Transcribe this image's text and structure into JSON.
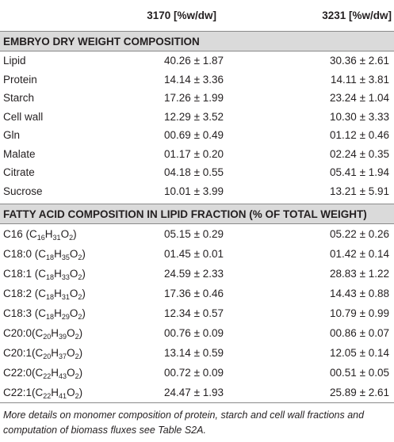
{
  "table": {
    "headers": [
      "",
      "3170 [%w/dw]",
      "3231 [%w/dw]"
    ],
    "sections": [
      {
        "title": "EMBRYO DRY WEIGHT COMPOSITION",
        "rows": [
          {
            "label": "Lipid",
            "v1": "40.26 ± 1.87",
            "v2": "30.36 ± 2.61"
          },
          {
            "label": "Protein",
            "v1": "14.14 ± 3.36",
            "v2": "14.11 ± 3.81"
          },
          {
            "label": "Starch",
            "v1": "17.26 ± 1.99",
            "v2": "23.24 ± 1.04"
          },
          {
            "label": "Cell wall",
            "v1": "12.29 ± 3.52",
            "v2": "10.30 ± 3.33"
          },
          {
            "label": "Gln",
            "v1": "00.69 ± 0.49",
            "v2": "01.12 ± 0.46"
          },
          {
            "label": "Malate",
            "v1": "01.17 ± 0.20",
            "v2": "02.24 ± 0.35"
          },
          {
            "label": "Citrate",
            "v1": "04.18 ± 0.55",
            "v2": "05.41 ± 1.94"
          },
          {
            "label": "Sucrose",
            "v1": "10.01 ± 3.99",
            "v2": "13.21 ± 5.91"
          }
        ]
      },
      {
        "title": "FATTY ACID COMPOSITION IN LIPID FRACTION (% OF TOTAL WEIGHT)",
        "rows": [
          {
            "name": "C16",
            "gap": " ",
            "formula": {
              "c": "16",
              "h": "31",
              "o": "2"
            },
            "v1": "05.15 ± 0.29",
            "v2": "05.22 ± 0.26"
          },
          {
            "name": "C18:0",
            "gap": " ",
            "formula": {
              "c": "18",
              "h": "35",
              "o": "2"
            },
            "v1": "01.45 ± 0.01",
            "v2": "01.42 ± 0.14"
          },
          {
            "name": "C18:1",
            "gap": " ",
            "formula": {
              "c": "18",
              "h": "33",
              "o": "2"
            },
            "v1": "24.59 ± 2.33",
            "v2": "28.83 ± 1.22"
          },
          {
            "name": "C18:2",
            "gap": " ",
            "formula": {
              "c": "18",
              "h": "31",
              "o": "2"
            },
            "v1": "17.36 ± 0.46",
            "v2": "14.43 ± 0.88"
          },
          {
            "name": "C18:3",
            "gap": " ",
            "formula": {
              "c": "18",
              "h": "29",
              "o": "2"
            },
            "v1": "12.34 ± 0.57",
            "v2": "10.79 ± 0.99"
          },
          {
            "name": "C20:0",
            "gap": "",
            "formula": {
              "c": "20",
              "h": "39",
              "o": "2"
            },
            "v1": "00.76 ± 0.09",
            "v2": "00.86 ± 0.07"
          },
          {
            "name": "C20:1",
            "gap": "",
            "formula": {
              "c": "20",
              "h": "37",
              "o": "2"
            },
            "v1": "13.14 ± 0.59",
            "v2": "12.05 ± 0.14"
          },
          {
            "name": "C22:0",
            "gap": "",
            "formula": {
              "c": "22",
              "h": "43",
              "o": "2"
            },
            "v1": "00.72 ± 0.09",
            "v2": "00.51 ± 0.05"
          },
          {
            "name": "C22:1",
            "gap": "",
            "formula": {
              "c": "22",
              "h": "41",
              "o": "2"
            },
            "v1": "24.47 ± 1.93",
            "v2": "25.89 ± 2.61"
          }
        ]
      }
    ]
  },
  "footnote": "More details on monomer composition of protein, starch and cell wall fractions and computation of biomass fluxes see Table S2A."
}
